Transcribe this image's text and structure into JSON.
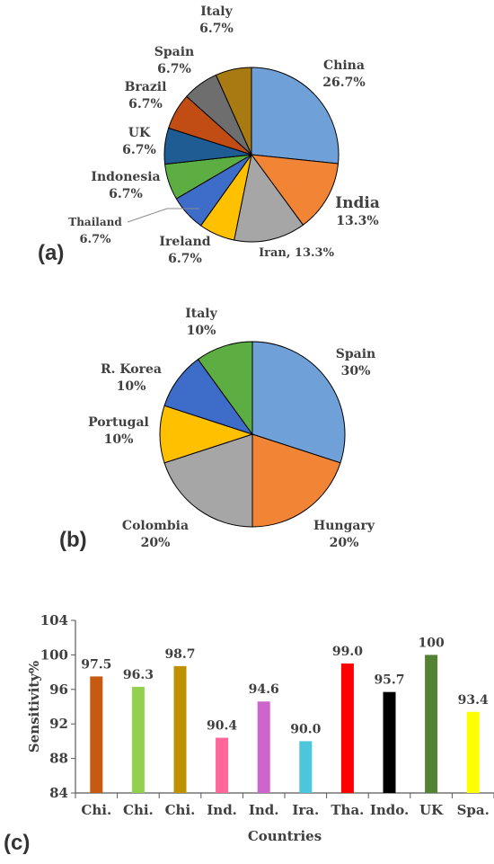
{
  "panels": {
    "a": "(a)",
    "b": "(b)",
    "c": "(c)"
  },
  "chart_data": [
    {
      "type": "pie",
      "panel": "(a)",
      "slices": [
        {
          "label": "China",
          "value": 26.7,
          "label_text": "26.7%",
          "color": "#6fa0d8"
        },
        {
          "label": "India",
          "value": 13.3,
          "label_text": "13.3%",
          "color": "#f28535"
        },
        {
          "label": "Iran",
          "value": 13.3,
          "label_text": "Iran, 13.3%",
          "color": "#a6a6a6"
        },
        {
          "label": "Ireland",
          "value": 6.7,
          "label_text": "6.7%",
          "color": "#ffc000"
        },
        {
          "label": "Thailand",
          "value": 6.7,
          "label_text": "6.7%",
          "color": "#3d6cc9"
        },
        {
          "label": "Indonesia",
          "value": 6.7,
          "label_text": "6.7%",
          "color": "#5cad42"
        },
        {
          "label": "UK",
          "value": 6.7,
          "label_text": "6.7%",
          "color": "#1f5c94"
        },
        {
          "label": "Brazil",
          "value": 6.7,
          "label_text": "6.7%",
          "color": "#c24d14"
        },
        {
          "label": "Spain",
          "value": 6.7,
          "label_text": "6.7%",
          "color": "#6e6e6e"
        },
        {
          "label": "Italy",
          "value": 6.7,
          "label_text": "6.7%",
          "color": "#a87a12"
        }
      ]
    },
    {
      "type": "pie",
      "panel": "(b)",
      "slices": [
        {
          "label": "Spain",
          "value": 30,
          "label_text": "30%",
          "color": "#6fa0d8"
        },
        {
          "label": "Hungary",
          "value": 20,
          "label_text": "20%",
          "color": "#f28535"
        },
        {
          "label": "Colombia",
          "value": 20,
          "label_text": "20%",
          "color": "#a6a6a6"
        },
        {
          "label": "Portugal",
          "value": 10,
          "label_text": "10%",
          "color": "#ffc000"
        },
        {
          "label": "R. Korea",
          "value": 10,
          "label_text": "10%",
          "color": "#3d6cc9"
        },
        {
          "label": "Italy",
          "value": 10,
          "label_text": "10%",
          "color": "#5cad42"
        }
      ]
    },
    {
      "type": "bar",
      "panel": "(c)",
      "categories": [
        "Chi.",
        "Chi.",
        "Chi.",
        "Ind.",
        "Ind.",
        "Ira.",
        "Tha.",
        "Indo.",
        "UK",
        "Spa."
      ],
      "values": [
        97.5,
        96.3,
        98.7,
        90.4,
        94.6,
        90.0,
        99.0,
        95.7,
        100,
        93.4
      ],
      "value_labels": [
        "97.5",
        "96.3",
        "98.7",
        "90.4",
        "94.6",
        "90.0",
        "99.0",
        "95.7",
        "100",
        "93.4"
      ],
      "colors": [
        "#c55a11",
        "#92d050",
        "#bf9000",
        "#ff6699",
        "#cc66cc",
        "#4bc6dc",
        "#ff0000",
        "#000000",
        "#548235",
        "#ffff00"
      ],
      "xlabel": "Countries",
      "ylabel": "Sensitivity%",
      "ylim": [
        84,
        104
      ],
      "yticks": [
        "84",
        "88",
        "92",
        "96",
        "100",
        "104"
      ],
      "grid": false
    }
  ]
}
